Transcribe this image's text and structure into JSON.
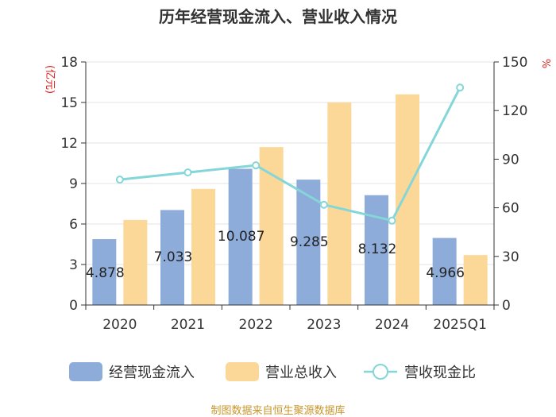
{
  "chart_data": {
    "type": "bar",
    "title": "历年经营现金流入、营业收入情况",
    "categories": [
      "2020",
      "2021",
      "2022",
      "2023",
      "2024",
      "2025Q1"
    ],
    "series": [
      {
        "name": "经营现金流入",
        "kind": "bar",
        "axis": "left",
        "color": "#8eacd9",
        "values": [
          4.878,
          7.033,
          10.087,
          9.285,
          8.132,
          4.966
        ]
      },
      {
        "name": "营业总收入",
        "kind": "bar",
        "axis": "left",
        "color": "#fcd898",
        "values": [
          6.3,
          8.6,
          11.7,
          15.0,
          15.6,
          3.7
        ]
      },
      {
        "name": "营收现金比",
        "kind": "line",
        "axis": "right",
        "color": "#84d6d9",
        "values": [
          77.4,
          81.8,
          86.2,
          61.9,
          52.1,
          134.2
        ]
      }
    ],
    "data_labels": [
      "4.878",
      "7.033",
      "10.087",
      "9.285",
      "8.132",
      "4.966"
    ],
    "left_axis": {
      "unit": "(亿元)",
      "min": 0,
      "max": 18,
      "ticks": [
        "0",
        "3",
        "6",
        "9",
        "12",
        "15",
        "18"
      ]
    },
    "right_axis": {
      "unit": "%",
      "min": 0,
      "max": 150,
      "ticks": [
        "0",
        "30",
        "60",
        "90",
        "120",
        "150"
      ]
    },
    "legend": [
      "经营现金流入",
      "营业总收入",
      "营收现金比"
    ],
    "legend_position": "bottom",
    "grid": true,
    "source": "制图数据来自恒生聚源数据库"
  }
}
